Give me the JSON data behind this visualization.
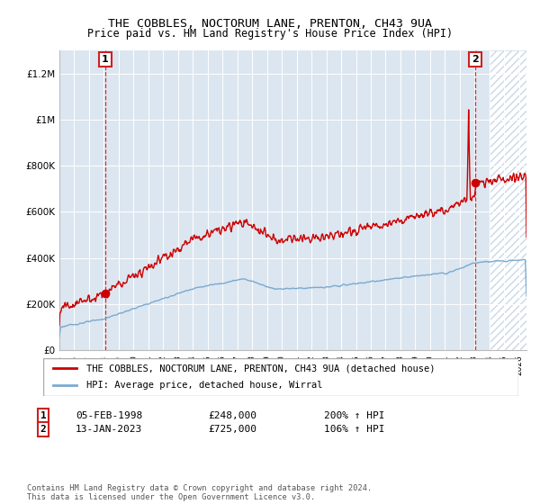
{
  "title1": "THE COBBLES, NOCTORUM LANE, PRENTON, CH43 9UA",
  "title2": "Price paid vs. HM Land Registry's House Price Index (HPI)",
  "hpi_label": "HPI: Average price, detached house, Wirral",
  "price_label": "THE COBBLES, NOCTORUM LANE, PRENTON, CH43 9UA (detached house)",
  "sale1_date": "05-FEB-1998",
  "sale1_price": 248000,
  "sale1_hpi": "200% ↑ HPI",
  "sale2_date": "13-JAN-2023",
  "sale2_price": 725000,
  "sale2_hpi": "106% ↑ HPI",
  "footer": "Contains HM Land Registry data © Crown copyright and database right 2024.\nThis data is licensed under the Open Government Licence v3.0.",
  "ylim_max": 1300000,
  "xlim_start": 1995.0,
  "xlim_end": 2026.5,
  "future_start": 2024.0,
  "hpi_color": "#7aaad0",
  "price_color": "#cc0000",
  "bg_color": "#dce6f0",
  "grid_color": "#ffffff",
  "sale1_x": 1998.09,
  "sale2_x": 2023.04,
  "yticks": [
    0,
    200000,
    400000,
    600000,
    800000,
    1000000,
    1200000
  ],
  "ylabels": [
    "£0",
    "£200K",
    "£400K",
    "£600K",
    "£800K",
    "£1M",
    "£1.2M"
  ]
}
